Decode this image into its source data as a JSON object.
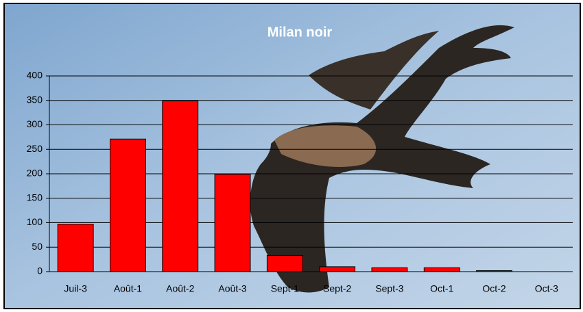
{
  "chart_data": {
    "type": "bar",
    "title": "Milan noir",
    "categories": [
      "Juil-3",
      "Août-1",
      "Août-2",
      "Août-3",
      "Sept-1",
      "Sept-2",
      "Sept-3",
      "Oct-1",
      "Oct-2",
      "Oct-3"
    ],
    "values": [
      97,
      271,
      349,
      199,
      33,
      10,
      8,
      8,
      2,
      0
    ],
    "color": "#ff0000",
    "ylim": [
      0,
      400
    ],
    "yticks": [
      0,
      50,
      100,
      150,
      200,
      250,
      300,
      350,
      400
    ],
    "grid": true
  }
}
